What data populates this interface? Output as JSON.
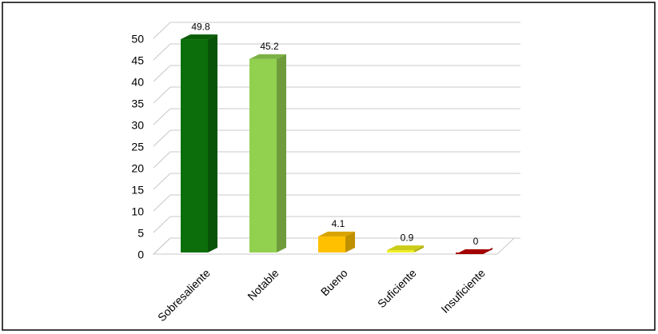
{
  "chart_data": {
    "type": "bar3d",
    "categories": [
      "Sobresaliente",
      "Notable",
      "Bueno",
      "Suficiente",
      "Insuficiente"
    ],
    "values": [
      49.8,
      45.2,
      4.1,
      0.9,
      0
    ],
    "colors": [
      "#0b6e0b",
      "#92d050",
      "#ffc000",
      "#f0f020",
      "#c00000"
    ],
    "ylim": [
      0,
      50
    ],
    "yticks": [
      0,
      5,
      10,
      15,
      20,
      25,
      30,
      35,
      40,
      45,
      50
    ],
    "grid": true
  }
}
